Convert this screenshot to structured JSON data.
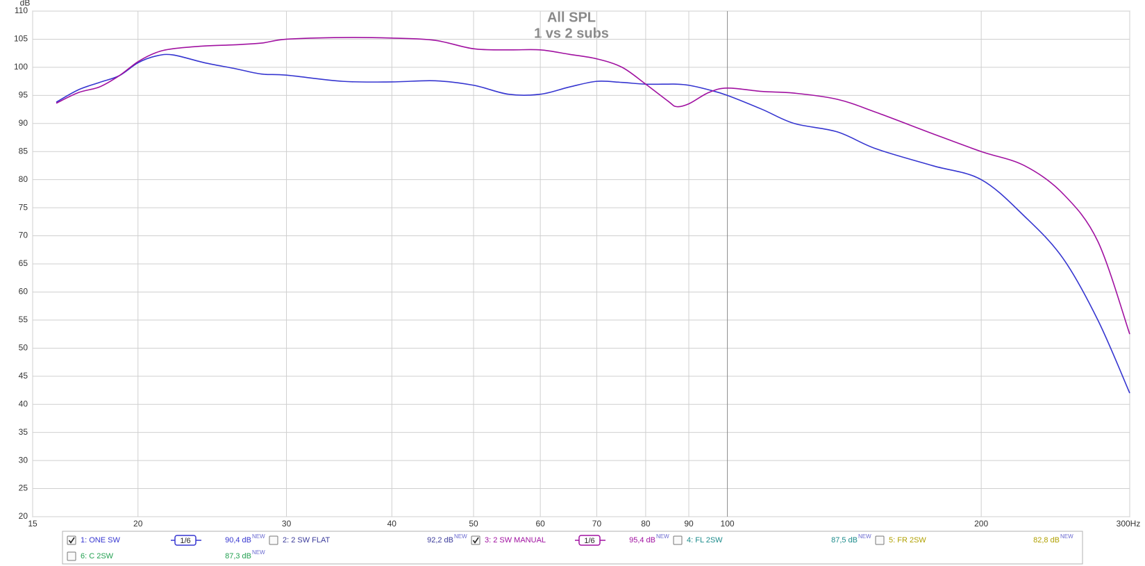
{
  "chart_data": {
    "type": "line",
    "title": "All SPL",
    "subtitle": "1 vs 2 subs",
    "ylabel": "dB",
    "xscale": "log",
    "grid": true,
    "xlim": [
      15,
      300
    ],
    "xticks": [
      15,
      20,
      30,
      40,
      50,
      60,
      70,
      80,
      90,
      100,
      200,
      {
        "value": 300,
        "label": "300Hz"
      }
    ],
    "ylim": [
      20,
      110
    ],
    "yticks": [
      20,
      25,
      30,
      35,
      40,
      45,
      50,
      55,
      60,
      65,
      70,
      75,
      80,
      85,
      90,
      95,
      100,
      105,
      110
    ],
    "x": [
      16,
      17,
      18,
      19,
      20,
      21,
      22,
      24,
      26,
      28,
      30,
      35,
      40,
      45,
      50,
      55,
      60,
      65,
      70,
      75,
      80,
      85,
      87,
      90,
      95,
      100,
      110,
      120,
      135,
      150,
      175,
      200,
      225,
      250,
      275,
      300
    ],
    "series": [
      {
        "name": "1: ONE SW",
        "color": "#3535d0",
        "checked": true,
        "smoothing": "1/6",
        "level": "90,4 dB",
        "values": [
          93.8,
          96,
          97.3,
          98.5,
          100.8,
          102,
          102.2,
          100.8,
          99.8,
          98.8,
          98.6,
          97.5,
          97.4,
          97.6,
          96.8,
          95.2,
          95.2,
          96.5,
          97.5,
          97.3,
          97,
          97,
          97,
          96.8,
          96,
          95,
          92.5,
          90,
          88.5,
          85.5,
          82.5,
          80,
          73.5,
          66,
          55,
          42
        ]
      },
      {
        "name": "3: 2 SW MANUAL",
        "color": "#a010a0",
        "checked": true,
        "smoothing": "1/6",
        "level": "95,4 dB",
        "values": [
          93.6,
          95.5,
          96.5,
          98.5,
          101,
          102.6,
          103.3,
          103.8,
          104,
          104.3,
          105,
          105.3,
          105.2,
          104.8,
          103.3,
          103.1,
          103.1,
          102.3,
          101.5,
          100,
          97,
          94,
          93,
          93.5,
          95.5,
          96.3,
          95.7,
          95.4,
          94.3,
          92,
          88.2,
          85,
          82.5,
          77.5,
          69,
          52.5
        ]
      }
    ],
    "other_measurements": [
      {
        "name": "2: 2 SW FLAT",
        "color": "#3a3a9a",
        "checked": false,
        "level": "92,2 dB"
      },
      {
        "name": "4: FL 2SW",
        "color": "#1a8a8a",
        "checked": false,
        "level": "87,5 dB"
      },
      {
        "name": "5: FR 2SW",
        "color": "#b0a000",
        "checked": false,
        "level": "82,8 dB"
      },
      {
        "name": "6: C 2SW",
        "color": "#22a050",
        "checked": false,
        "level": "87,3 dB"
      }
    ],
    "badge": "NEW"
  }
}
